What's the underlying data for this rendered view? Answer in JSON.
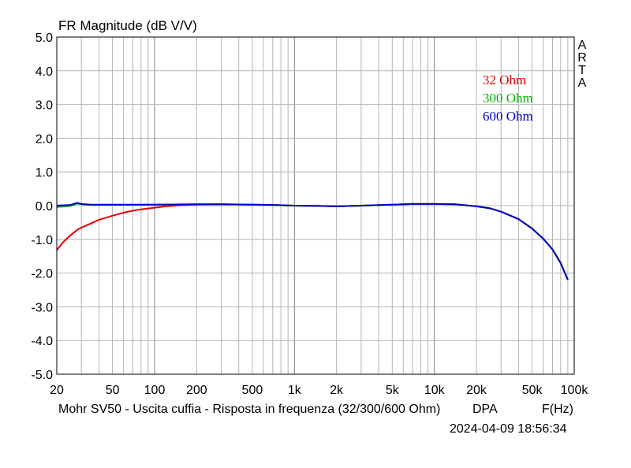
{
  "chart_data": {
    "type": "line",
    "title": "FR Magnitude (dB V/V)",
    "watermark": "ARTA",
    "xlabel": "F(Hz)",
    "x_scale": "log",
    "xlim": [
      20,
      100000
    ],
    "ylim": [
      -5,
      5
    ],
    "x_ticks": [
      20,
      50,
      100,
      200,
      500,
      1000,
      2000,
      5000,
      10000,
      20000,
      50000,
      100000
    ],
    "x_tick_labels": [
      "20",
      "50",
      "100",
      "200",
      "500",
      "1k",
      "2k",
      "5k",
      "10k",
      "20k",
      "50k",
      "100k"
    ],
    "y_ticks": [
      5,
      4,
      3,
      2,
      1,
      0,
      -1,
      -2,
      -3,
      -4,
      -5
    ],
    "y_tick_labels": [
      "5.0",
      "4.0",
      "3.0",
      "2.0",
      "1.0",
      "0.0",
      "-1.0",
      "-2.0",
      "-3.0",
      "-4.0",
      "-5.0"
    ],
    "grid": true,
    "legend_position": "top-right",
    "caption": "Mohr SV50 - Uscita cuffia - Risposta in frequenza (32/300/600 Ohm)",
    "caption_right": "DPA",
    "timestamp": "2024-04-09  18:56:34",
    "series": [
      {
        "name": "32 Ohm",
        "color": "#e00000",
        "x": [
          20,
          22,
          25,
          28,
          30,
          35,
          40,
          50,
          60,
          70,
          80,
          100,
          120,
          150,
          200,
          300,
          500,
          700,
          1000,
          1500,
          2000,
          3000,
          5000,
          7000,
          10000,
          14000,
          20000,
          25000,
          30000,
          40000,
          50000,
          60000,
          70000,
          80000,
          90000
        ],
        "y": [
          -1.32,
          -1.1,
          -0.88,
          -0.72,
          -0.65,
          -0.53,
          -0.42,
          -0.3,
          -0.21,
          -0.15,
          -0.11,
          -0.06,
          -0.02,
          0.01,
          0.03,
          0.04,
          0.03,
          0.02,
          0.0,
          -0.01,
          -0.02,
          0.0,
          0.03,
          0.05,
          0.05,
          0.04,
          -0.02,
          -0.08,
          -0.18,
          -0.4,
          -0.68,
          -0.98,
          -1.3,
          -1.7,
          -2.2
        ]
      },
      {
        "name": "300 Ohm",
        "color": "#00b400",
        "x": [
          20,
          25,
          28,
          30,
          35,
          50,
          100,
          200,
          300,
          500,
          700,
          1000,
          1500,
          2000,
          3000,
          5000,
          7000,
          10000,
          14000,
          20000,
          25000,
          30000,
          40000,
          50000,
          60000,
          70000,
          80000,
          90000
        ],
        "y": [
          -0.04,
          -0.01,
          0.06,
          0.04,
          0.02,
          0.02,
          0.03,
          0.04,
          0.04,
          0.03,
          0.02,
          0.0,
          -0.01,
          -0.02,
          0.0,
          0.03,
          0.05,
          0.05,
          0.04,
          -0.02,
          -0.08,
          -0.18,
          -0.4,
          -0.68,
          -0.98,
          -1.3,
          -1.7,
          -2.2
        ]
      },
      {
        "name": "600 Ohm",
        "color": "#0000c8",
        "x": [
          20,
          25,
          28,
          30,
          35,
          50,
          100,
          200,
          300,
          500,
          700,
          1000,
          1500,
          2000,
          3000,
          5000,
          7000,
          10000,
          14000,
          20000,
          25000,
          30000,
          40000,
          50000,
          60000,
          70000,
          80000,
          90000
        ],
        "y": [
          0.0,
          0.02,
          0.08,
          0.05,
          0.03,
          0.03,
          0.03,
          0.04,
          0.04,
          0.03,
          0.02,
          0.0,
          -0.01,
          -0.02,
          0.0,
          0.03,
          0.05,
          0.05,
          0.04,
          -0.02,
          -0.08,
          -0.18,
          -0.4,
          -0.68,
          -0.98,
          -1.3,
          -1.7,
          -2.2
        ]
      }
    ]
  }
}
